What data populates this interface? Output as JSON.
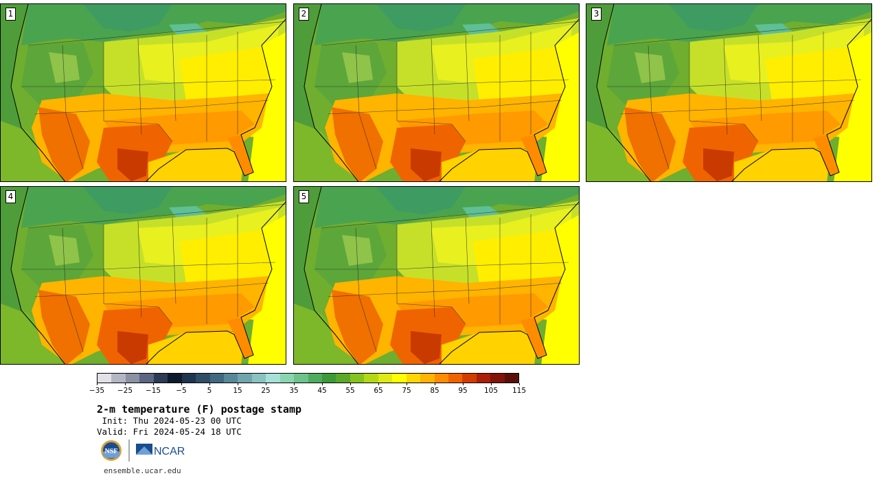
{
  "panels": [
    {
      "label": "1"
    },
    {
      "label": "2"
    },
    {
      "label": "3"
    },
    {
      "label": "4"
    },
    {
      "label": "5"
    }
  ],
  "colorbar": {
    "colors": [
      "#e2e2e6",
      "#b4b6c4",
      "#8c92a4",
      "#5c6582",
      "#2d3a55",
      "#0d1a2e",
      "#1e3550",
      "#2e4e68",
      "#3f6980",
      "#578898",
      "#71a5ae",
      "#8ac2c2",
      "#a6e0d6",
      "#8bd4b0",
      "#6ec28c",
      "#4fab5e",
      "#3d9a38",
      "#5ca82a",
      "#87c31e",
      "#b4d816",
      "#e0ea12",
      "#ffff00",
      "#ffd700",
      "#ffb400",
      "#ff8c00",
      "#f06400",
      "#d23c00",
      "#aa1e0a",
      "#801408",
      "#5a0f08"
    ],
    "tick_labels": [
      "−35",
      "−25",
      "−15",
      "−5",
      "5",
      "15",
      "25",
      "35",
      "45",
      "55",
      "65",
      "75",
      "85",
      "95",
      "105",
      "115"
    ]
  },
  "title": "2-m temperature (F) postage stamp",
  "init": " Init: Thu 2024-05-23 00 UTC",
  "valid": "Valid: Fri 2024-05-24 18 UTC",
  "logos": {
    "nsf": "NSF",
    "ncar": "NCAR"
  },
  "website": "ensemble.ucar.edu"
}
